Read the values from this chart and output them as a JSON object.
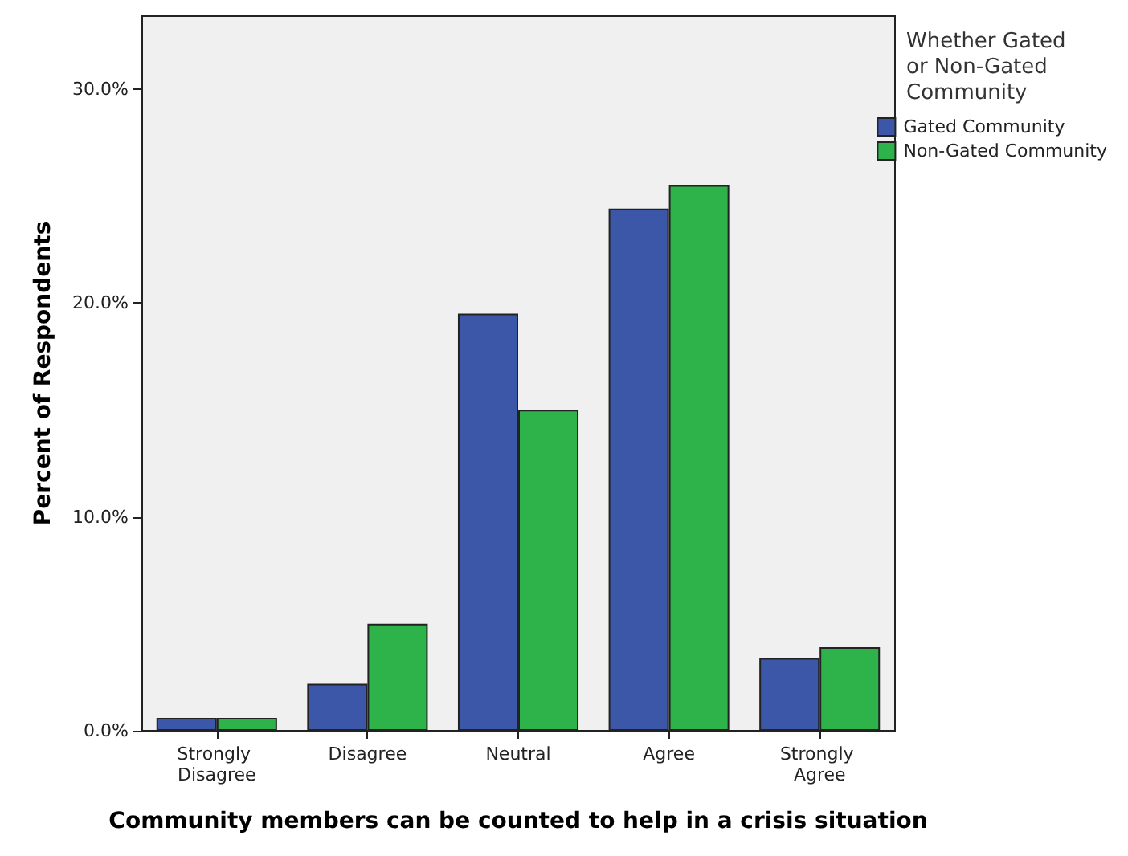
{
  "chart_data": {
    "type": "bar",
    "xlabel": "Community members can be counted to help in a crisis situation",
    "ylabel": "Percent of Respondents",
    "legend_title": "Whether Gated or Non-Gated Community",
    "categories": [
      "Strongly Disagree",
      "Disagree",
      "Neutral",
      "Agree",
      "Strongly Agree"
    ],
    "series": [
      {
        "name": "Gated Community",
        "color": "#3c56a8",
        "values": [
          0.6,
          2.2,
          19.5,
          24.4,
          3.4
        ]
      },
      {
        "name": "Non-Gated Community",
        "color": "#2db34a",
        "values": [
          0.6,
          5.0,
          15.0,
          25.5,
          3.9
        ]
      }
    ],
    "ylim": [
      0,
      33.4
    ],
    "yticks": [
      {
        "value": 0,
        "label": "0.0%"
      },
      {
        "value": 10,
        "label": "10.0%"
      },
      {
        "value": 20,
        "label": "20.0%"
      },
      {
        "value": 30,
        "label": "30.0%"
      }
    ],
    "grid": false,
    "legend": "top right"
  }
}
